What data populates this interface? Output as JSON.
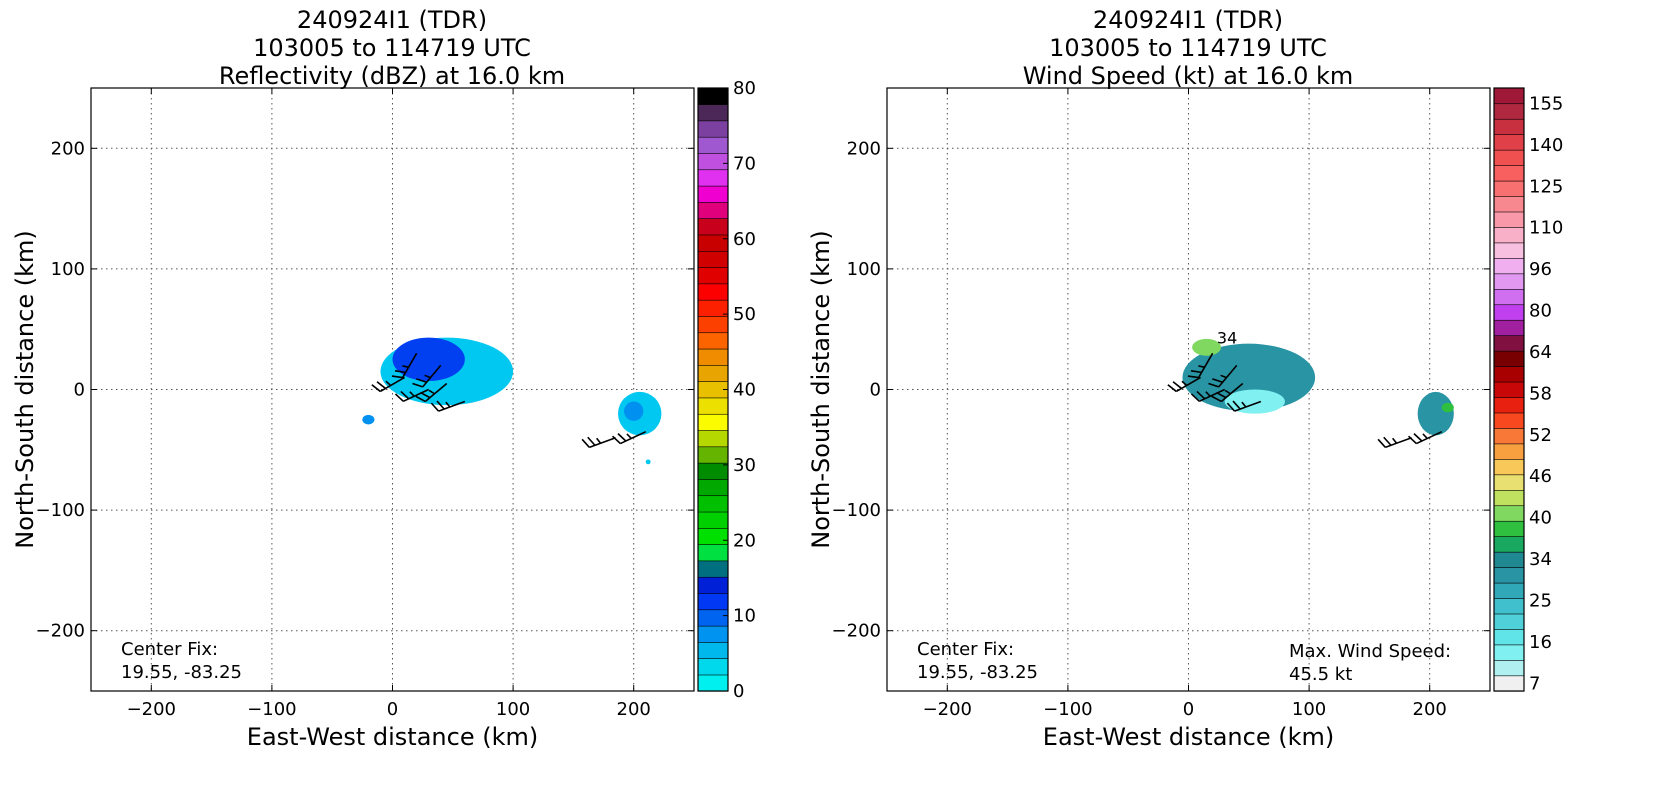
{
  "chart_data": [
    {
      "type": "heatmap",
      "title_lines": [
        "240924I1 (TDR)",
        "103005 to 114719 UTC",
        "Reflectivity (dBZ) at 16.0 km"
      ],
      "xlabel": "East-West distance (km)",
      "ylabel": "North-South distance (km)",
      "xlim": [
        -250,
        250
      ],
      "ylim": [
        -250,
        250
      ],
      "xticks": [
        -200,
        -100,
        0,
        100,
        200
      ],
      "yticks": [
        -200,
        -100,
        0,
        100,
        200
      ],
      "xtick_labels": [
        "−200",
        "−100",
        "0",
        "100",
        "200"
      ],
      "ytick_labels": [
        "−200",
        "−100",
        "0",
        "100",
        "200"
      ],
      "grid": true,
      "annotation": [
        "Center Fix:",
        "19.55, -83.25"
      ],
      "colorbar": {
        "range": [
          0,
          80
        ],
        "tick_values": [
          0,
          10,
          20,
          30,
          40,
          50,
          60,
          70,
          80
        ],
        "tick_labels": [
          "0",
          "10",
          "20",
          "30",
          "40",
          "50",
          "60",
          "70",
          "80"
        ],
        "colors": [
          "#00f0f0",
          "#00d8ec",
          "#00b8ec",
          "#0094f0",
          "#0064f0",
          "#0038f4",
          "#0020d8",
          "#007080",
          "#00e040",
          "#00e000",
          "#00d000",
          "#00c000",
          "#00a800",
          "#008c00",
          "#64b400",
          "#b4d800",
          "#fcfc00",
          "#ece000",
          "#e8c000",
          "#e8a400",
          "#f08c00",
          "#fc6400",
          "#fc4000",
          "#fc2000",
          "#fc0000",
          "#e00000",
          "#d00000",
          "#c80000",
          "#c8001c",
          "#e0007c",
          "#f000d0",
          "#e030f0",
          "#c050e0",
          "#a058d0",
          "#7c40a0",
          "#4c2858",
          "#000000"
        ]
      },
      "regions": [
        {
          "name": "main-echo",
          "cx": 45,
          "cy": 15,
          "rx": 55,
          "ry": 28,
          "color": "#00c8f0"
        },
        {
          "name": "main-echo-core",
          "cx": 30,
          "cy": 25,
          "rx": 30,
          "ry": 18,
          "color": "#0040f0"
        },
        {
          "name": "east-echo",
          "cx": 205,
          "cy": -20,
          "rx": 18,
          "ry": 18,
          "color": "#00c8f0"
        },
        {
          "name": "east-echo-core",
          "cx": 200,
          "cy": -18,
          "rx": 8,
          "ry": 8,
          "color": "#0090f0"
        },
        {
          "name": "west-speck",
          "cx": -20,
          "cy": -25,
          "rx": 5,
          "ry": 4,
          "color": "#0090f0"
        },
        {
          "name": "south-speck",
          "cx": 212,
          "cy": -60,
          "rx": 2,
          "ry": 2,
          "color": "#00c8f0"
        }
      ],
      "wind_barbs": [
        {
          "x": 20,
          "y": 30,
          "dir": 210
        },
        {
          "x": 40,
          "y": 20,
          "dir": 220
        },
        {
          "x": 10,
          "y": 10,
          "dir": 240
        },
        {
          "x": 45,
          "y": 5,
          "dir": 230
        },
        {
          "x": 60,
          "y": -10,
          "dir": 250
        },
        {
          "x": 30,
          "y": 0,
          "dir": 245
        },
        {
          "x": 185,
          "y": -40,
          "dir": 250
        },
        {
          "x": 210,
          "y": -35,
          "dir": 245
        }
      ]
    },
    {
      "type": "heatmap",
      "title_lines": [
        "240924I1 (TDR)",
        "103005 to 114719 UTC",
        "Wind Speed (kt) at 16.0 km"
      ],
      "xlabel": "East-West distance (km)",
      "ylabel": "North-South distance (km)",
      "xlim": [
        -250,
        250
      ],
      "ylim": [
        -250,
        250
      ],
      "xticks": [
        -200,
        -100,
        0,
        100,
        200
      ],
      "yticks": [
        -200,
        -100,
        0,
        100,
        200
      ],
      "xtick_labels": [
        "−200",
        "−100",
        "0",
        "100",
        "200"
      ],
      "ytick_labels": [
        "−200",
        "−100",
        "0",
        "100",
        "200"
      ],
      "grid": true,
      "annotation": [
        "Center Fix:",
        "19.55, -83.25"
      ],
      "max_wind_annotation": [
        "Max. Wind Speed:",
        "45.5 kt"
      ],
      "contour_label": "34",
      "colorbar": {
        "tick_labels": [
          "7",
          "16",
          "25",
          "34",
          "40",
          "46",
          "52",
          "58",
          "64",
          "80",
          "96",
          "110",
          "125",
          "140",
          "155"
        ],
        "colors": [
          "#f0f0f0",
          "#b0f0f0",
          "#80f0f0",
          "#60e4e8",
          "#50d0d8",
          "#40c0cc",
          "#30a8b8",
          "#2894a4",
          "#208890",
          "#18a860",
          "#30c040",
          "#80d860",
          "#c0e060",
          "#e8e070",
          "#f8c858",
          "#f8a040",
          "#f87838",
          "#f84820",
          "#e82010",
          "#c80808",
          "#a80000",
          "#780000",
          "#801040",
          "#a020a0",
          "#c040f0",
          "#d070f0",
          "#e098f0",
          "#f0b0f0",
          "#f8c0e0",
          "#f8b0c8",
          "#f898a8",
          "#f88890",
          "#f87070",
          "#f86060",
          "#f05050",
          "#e04048",
          "#c83040",
          "#b02840",
          "#a01838"
        ]
      },
      "regions": [
        {
          "name": "main-echo",
          "cx": 50,
          "cy": 10,
          "rx": 55,
          "ry": 28,
          "color": "#2894a4"
        },
        {
          "name": "main-echo-light",
          "cx": 55,
          "cy": -10,
          "rx": 25,
          "ry": 10,
          "color": "#80f0f0"
        },
        {
          "name": "main-echo-green",
          "cx": 15,
          "cy": 35,
          "rx": 12,
          "ry": 7,
          "color": "#80d860"
        },
        {
          "name": "east-echo",
          "cx": 205,
          "cy": -20,
          "rx": 15,
          "ry": 18,
          "color": "#2894a4"
        },
        {
          "name": "east-echo-green",
          "cx": 215,
          "cy": -15,
          "rx": 5,
          "ry": 4,
          "color": "#30c040"
        }
      ],
      "wind_barbs": [
        {
          "x": 20,
          "y": 30,
          "dir": 210
        },
        {
          "x": 40,
          "y": 20,
          "dir": 220
        },
        {
          "x": 10,
          "y": 10,
          "dir": 240
        },
        {
          "x": 45,
          "y": 5,
          "dir": 230
        },
        {
          "x": 60,
          "y": -10,
          "dir": 250
        },
        {
          "x": 30,
          "y": 0,
          "dir": 245
        },
        {
          "x": 185,
          "y": -40,
          "dir": 250
        },
        {
          "x": 210,
          "y": -35,
          "dir": 245
        }
      ]
    }
  ]
}
